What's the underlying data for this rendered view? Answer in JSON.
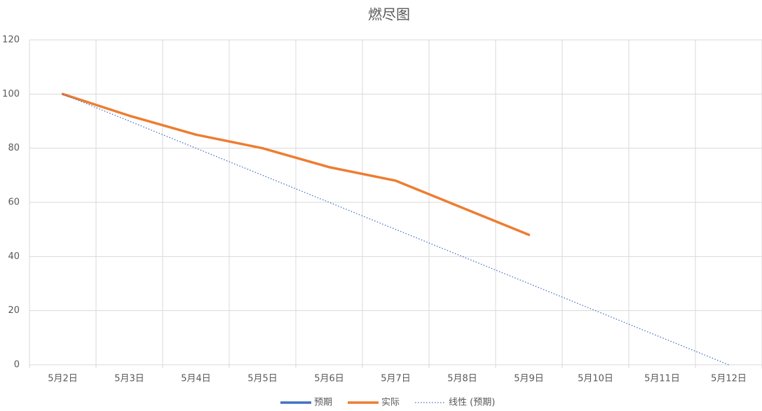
{
  "chart_data": {
    "type": "line",
    "title": "燃尽图",
    "categories": [
      "5月2日",
      "5月3日",
      "5月4日",
      "5月5日",
      "5月6日",
      "5月7日",
      "5月8日",
      "5月9日",
      "5月10日",
      "5月11日",
      "5月12日"
    ],
    "series": [
      {
        "name": "预期",
        "color": "#4472c4",
        "show_line": false,
        "values": [
          100,
          90,
          80,
          70,
          60,
          50,
          40,
          30,
          20,
          10,
          0
        ]
      },
      {
        "name": "实际",
        "color": "#ed7d31",
        "show_line": true,
        "values": [
          100,
          92,
          85,
          80,
          73,
          68,
          58,
          48,
          null,
          null,
          null
        ]
      }
    ],
    "trendline": {
      "name": "线性 (预期)",
      "series": 0,
      "color": "#4472c4",
      "style": "dotted"
    },
    "ylim": [
      0,
      120
    ],
    "yticks": [
      0,
      20,
      40,
      60,
      80,
      100,
      120
    ],
    "grid": true,
    "legend": "bottom"
  }
}
